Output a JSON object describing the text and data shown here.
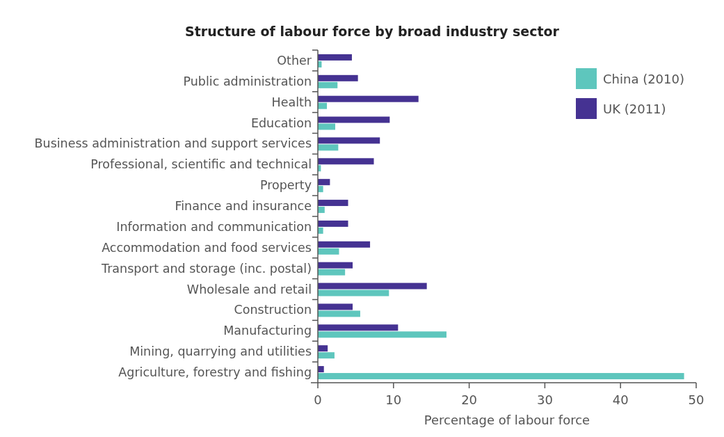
{
  "chart_data": {
    "type": "bar",
    "orientation": "horizontal",
    "title": "Structure of labour force by broad industry sector",
    "xlabel": "Percentage of labour force",
    "categories": [
      "Other",
      "Public administration",
      "Health",
      "Education",
      "Business administration and support services",
      "Professional, scientific and technical",
      "Property",
      "Finance and insurance",
      "Information and communication",
      "Accommodation and food services",
      "Transport and storage (inc. postal)",
      "Wholesale and retail",
      "Construction",
      "Manufacturing",
      "Mining, quarrying and utilities",
      "Agriculture, forestry and fishing"
    ],
    "series": [
      {
        "name": "China (2010)",
        "color": "#5ec6bd",
        "values": [
          0.5,
          2.6,
          1.2,
          2.3,
          2.7,
          0.4,
          0.7,
          0.9,
          0.7,
          2.8,
          3.6,
          9.4,
          5.6,
          17.0,
          2.2,
          48.4
        ]
      },
      {
        "name": "UK (2011)",
        "color": "#453292",
        "values": [
          4.5,
          5.3,
          13.3,
          9.5,
          8.2,
          7.4,
          1.6,
          4.0,
          4.0,
          6.9,
          4.6,
          14.4,
          4.6,
          10.6,
          1.3,
          0.8
        ]
      }
    ],
    "xlim": [
      0,
      50
    ],
    "xticks": [
      0,
      10,
      20,
      30,
      40,
      50
    ],
    "legend": "top right",
    "grid": false
  }
}
